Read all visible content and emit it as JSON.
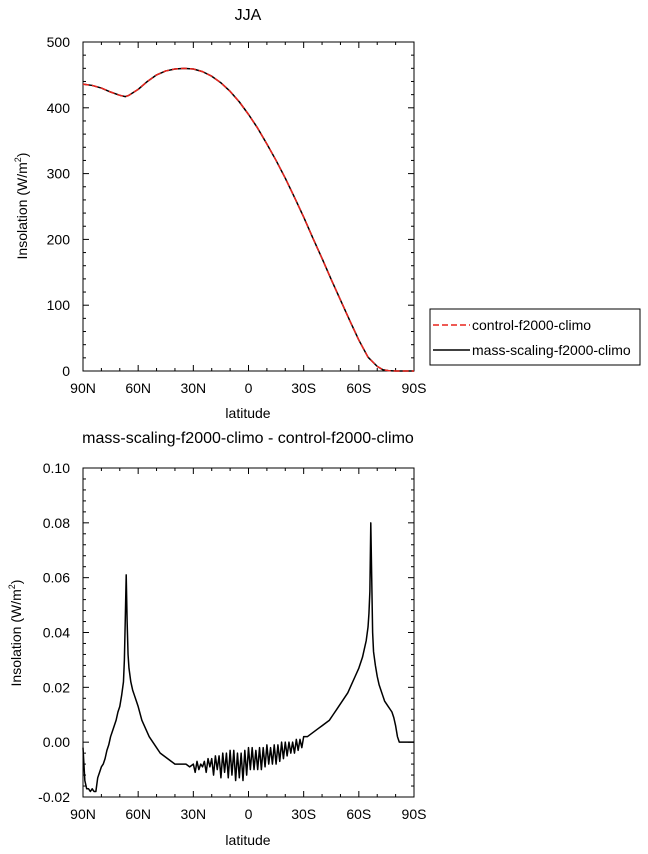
{
  "chart_data": [
    {
      "type": "line",
      "title": "JJA",
      "xlabel": "latitude",
      "ylabel": "Insolation (W/m",
      "ylabel_sup": "2",
      "ylabel_close": ")",
      "xlim": [
        90,
        -90
      ],
      "ylim": [
        0,
        500
      ],
      "xticks": [
        {
          "value": 90,
          "label": "90N"
        },
        {
          "value": 60,
          "label": "60N"
        },
        {
          "value": 30,
          "label": "30N"
        },
        {
          "value": 0,
          "label": "0"
        },
        {
          "value": -30,
          "label": "30S"
        },
        {
          "value": -60,
          "label": "60S"
        },
        {
          "value": -90,
          "label": "90S"
        }
      ],
      "yticks": [
        {
          "value": 0,
          "label": "0"
        },
        {
          "value": 100,
          "label": "100"
        },
        {
          "value": 200,
          "label": "200"
        },
        {
          "value": 300,
          "label": "300"
        },
        {
          "value": 400,
          "label": "400"
        },
        {
          "value": 500,
          "label": "500"
        }
      ],
      "legend_position": "right",
      "series": [
        {
          "name": "control-f2000-climo",
          "color": "#e8231c",
          "dash": "dashed",
          "x": [
            90,
            85,
            80,
            75,
            70,
            67,
            65,
            60,
            55,
            50,
            45,
            40,
            35,
            30,
            25,
            20,
            15,
            10,
            5,
            0,
            -5,
            -10,
            -15,
            -20,
            -25,
            -30,
            -35,
            -40,
            -45,
            -50,
            -55,
            -60,
            -65,
            -70,
            -73,
            -76,
            -80,
            -85,
            -90
          ],
          "y": [
            436,
            434,
            430,
            424,
            419,
            417,
            419,
            428,
            440,
            450,
            456,
            459,
            460,
            459,
            455,
            448,
            438,
            425,
            409,
            390,
            369,
            345,
            320,
            293,
            264,
            234,
            202,
            171,
            139,
            108,
            77,
            47,
            21,
            7,
            2,
            0.5,
            0,
            0,
            0
          ]
        },
        {
          "name": "mass-scaling-f2000-climo",
          "color": "#000000",
          "dash": "solid",
          "x": [
            90,
            85,
            80,
            75,
            70,
            67,
            65,
            60,
            55,
            50,
            45,
            40,
            35,
            30,
            25,
            20,
            15,
            10,
            5,
            0,
            -5,
            -10,
            -15,
            -20,
            -25,
            -30,
            -35,
            -40,
            -45,
            -50,
            -55,
            -60,
            -65,
            -70,
            -73,
            -76,
            -80,
            -85,
            -90
          ],
          "y": [
            436,
            434,
            430,
            424,
            419,
            417,
            419,
            428,
            440,
            450,
            456,
            459,
            460,
            459,
            455,
            448,
            438,
            425,
            409,
            390,
            369,
            345,
            320,
            293,
            264,
            234,
            202,
            171,
            139,
            108,
            77,
            47,
            21,
            7,
            2,
            0.5,
            0,
            0,
            0
          ]
        }
      ]
    },
    {
      "type": "line",
      "title": "mass-scaling-f2000-climo - control-f2000-climo",
      "xlabel": "latitude",
      "ylabel": "Insolation (W/m",
      "ylabel_sup": "2",
      "ylabel_close": ")",
      "xlim": [
        90,
        -90
      ],
      "ylim": [
        -0.02,
        0.1
      ],
      "xticks": [
        {
          "value": 90,
          "label": "90N"
        },
        {
          "value": 60,
          "label": "60N"
        },
        {
          "value": 30,
          "label": "30N"
        },
        {
          "value": 0,
          "label": "0"
        },
        {
          "value": -30,
          "label": "30S"
        },
        {
          "value": -60,
          "label": "60S"
        },
        {
          "value": -90,
          "label": "90S"
        }
      ],
      "yticks": [
        {
          "value": -0.02,
          "label": "-0.02"
        },
        {
          "value": 0.0,
          "label": "0.00"
        },
        {
          "value": 0.02,
          "label": "0.02"
        },
        {
          "value": 0.04,
          "label": "0.04"
        },
        {
          "value": 0.06,
          "label": "0.06"
        },
        {
          "value": 0.08,
          "label": "0.08"
        },
        {
          "value": 0.1,
          "label": "0.10"
        }
      ],
      "series": [
        {
          "name": "mass-scaling-f2000-climo - control-f2000-climo",
          "color": "#000000",
          "dash": "solid",
          "x": [
            90,
            89,
            88,
            87,
            86,
            85,
            84,
            83,
            82,
            81,
            80,
            79,
            78,
            77,
            76,
            75,
            74,
            73,
            72,
            71,
            70,
            69,
            68,
            67.5,
            67,
            66.5,
            66,
            65.5,
            65,
            64,
            63,
            62,
            61,
            60,
            58,
            56,
            54,
            52,
            50,
            48,
            46,
            44,
            42,
            40,
            38,
            36,
            34,
            32,
            30,
            29,
            28,
            27,
            26,
            25,
            24,
            23,
            22,
            21,
            20,
            19,
            18,
            17,
            16,
            15,
            14,
            13,
            12,
            11,
            10,
            9,
            8,
            7,
            6,
            5,
            4,
            3,
            2,
            1,
            0,
            -1,
            -2,
            -3,
            -4,
            -5,
            -6,
            -7,
            -8,
            -9,
            -10,
            -11,
            -12,
            -13,
            -14,
            -15,
            -16,
            -17,
            -18,
            -19,
            -20,
            -21,
            -22,
            -23,
            -24,
            -25,
            -26,
            -27,
            -28,
            -29,
            -30,
            -32,
            -34,
            -36,
            -38,
            -40,
            -42,
            -44,
            -46,
            -48,
            -50,
            -52,
            -54,
            -56,
            -58,
            -60,
            -61,
            -62,
            -63,
            -64,
            -65,
            -65.5,
            -66,
            -66.5,
            -67,
            -67.5,
            -68,
            -69,
            -70,
            -71,
            -72,
            -73,
            -74,
            -75,
            -76,
            -77,
            -78,
            -79,
            -80,
            -81,
            -82,
            -83,
            -85,
            -87,
            -90
          ],
          "y": [
            -0.002,
            -0.014,
            -0.017,
            -0.017,
            -0.018,
            -0.017,
            -0.018,
            -0.018,
            -0.013,
            -0.011,
            -0.009,
            -0.008,
            -0.006,
            -0.003,
            -0.001,
            0.002,
            0.004,
            0.006,
            0.008,
            0.011,
            0.013,
            0.017,
            0.022,
            0.03,
            0.045,
            0.061,
            0.044,
            0.032,
            0.027,
            0.022,
            0.019,
            0.017,
            0.015,
            0.013,
            0.008,
            0.005,
            0.002,
            0.0,
            -0.002,
            -0.004,
            -0.005,
            -0.006,
            -0.007,
            -0.008,
            -0.008,
            -0.008,
            -0.008,
            -0.009,
            -0.008,
            -0.011,
            -0.007,
            -0.01,
            -0.008,
            -0.009,
            -0.007,
            -0.011,
            -0.006,
            -0.009,
            -0.006,
            -0.012,
            -0.005,
            -0.01,
            -0.005,
            -0.013,
            -0.004,
            -0.011,
            -0.004,
            -0.013,
            -0.003,
            -0.012,
            -0.003,
            -0.014,
            -0.004,
            -0.013,
            -0.004,
            -0.014,
            -0.003,
            -0.012,
            -0.002,
            -0.01,
            -0.002,
            -0.01,
            -0.003,
            -0.01,
            -0.002,
            -0.01,
            -0.002,
            -0.009,
            -0.001,
            -0.008,
            -0.002,
            -0.008,
            -0.001,
            -0.008,
            -0.001,
            -0.007,
            0.0,
            -0.006,
            0.0,
            -0.005,
            0.0,
            -0.004,
            0.0,
            -0.004,
            0.001,
            -0.003,
            0.001,
            -0.002,
            0.002,
            0.002,
            0.003,
            0.004,
            0.005,
            0.006,
            0.007,
            0.008,
            0.01,
            0.012,
            0.014,
            0.016,
            0.018,
            0.021,
            0.024,
            0.027,
            0.029,
            0.031,
            0.034,
            0.037,
            0.042,
            0.047,
            0.055,
            0.08,
            0.06,
            0.04,
            0.033,
            0.028,
            0.024,
            0.021,
            0.019,
            0.017,
            0.015,
            0.014,
            0.013,
            0.012,
            0.011,
            0.009,
            0.006,
            0.002,
            0.0,
            0.0,
            0.0,
            0.0,
            0.0
          ]
        }
      ]
    }
  ]
}
